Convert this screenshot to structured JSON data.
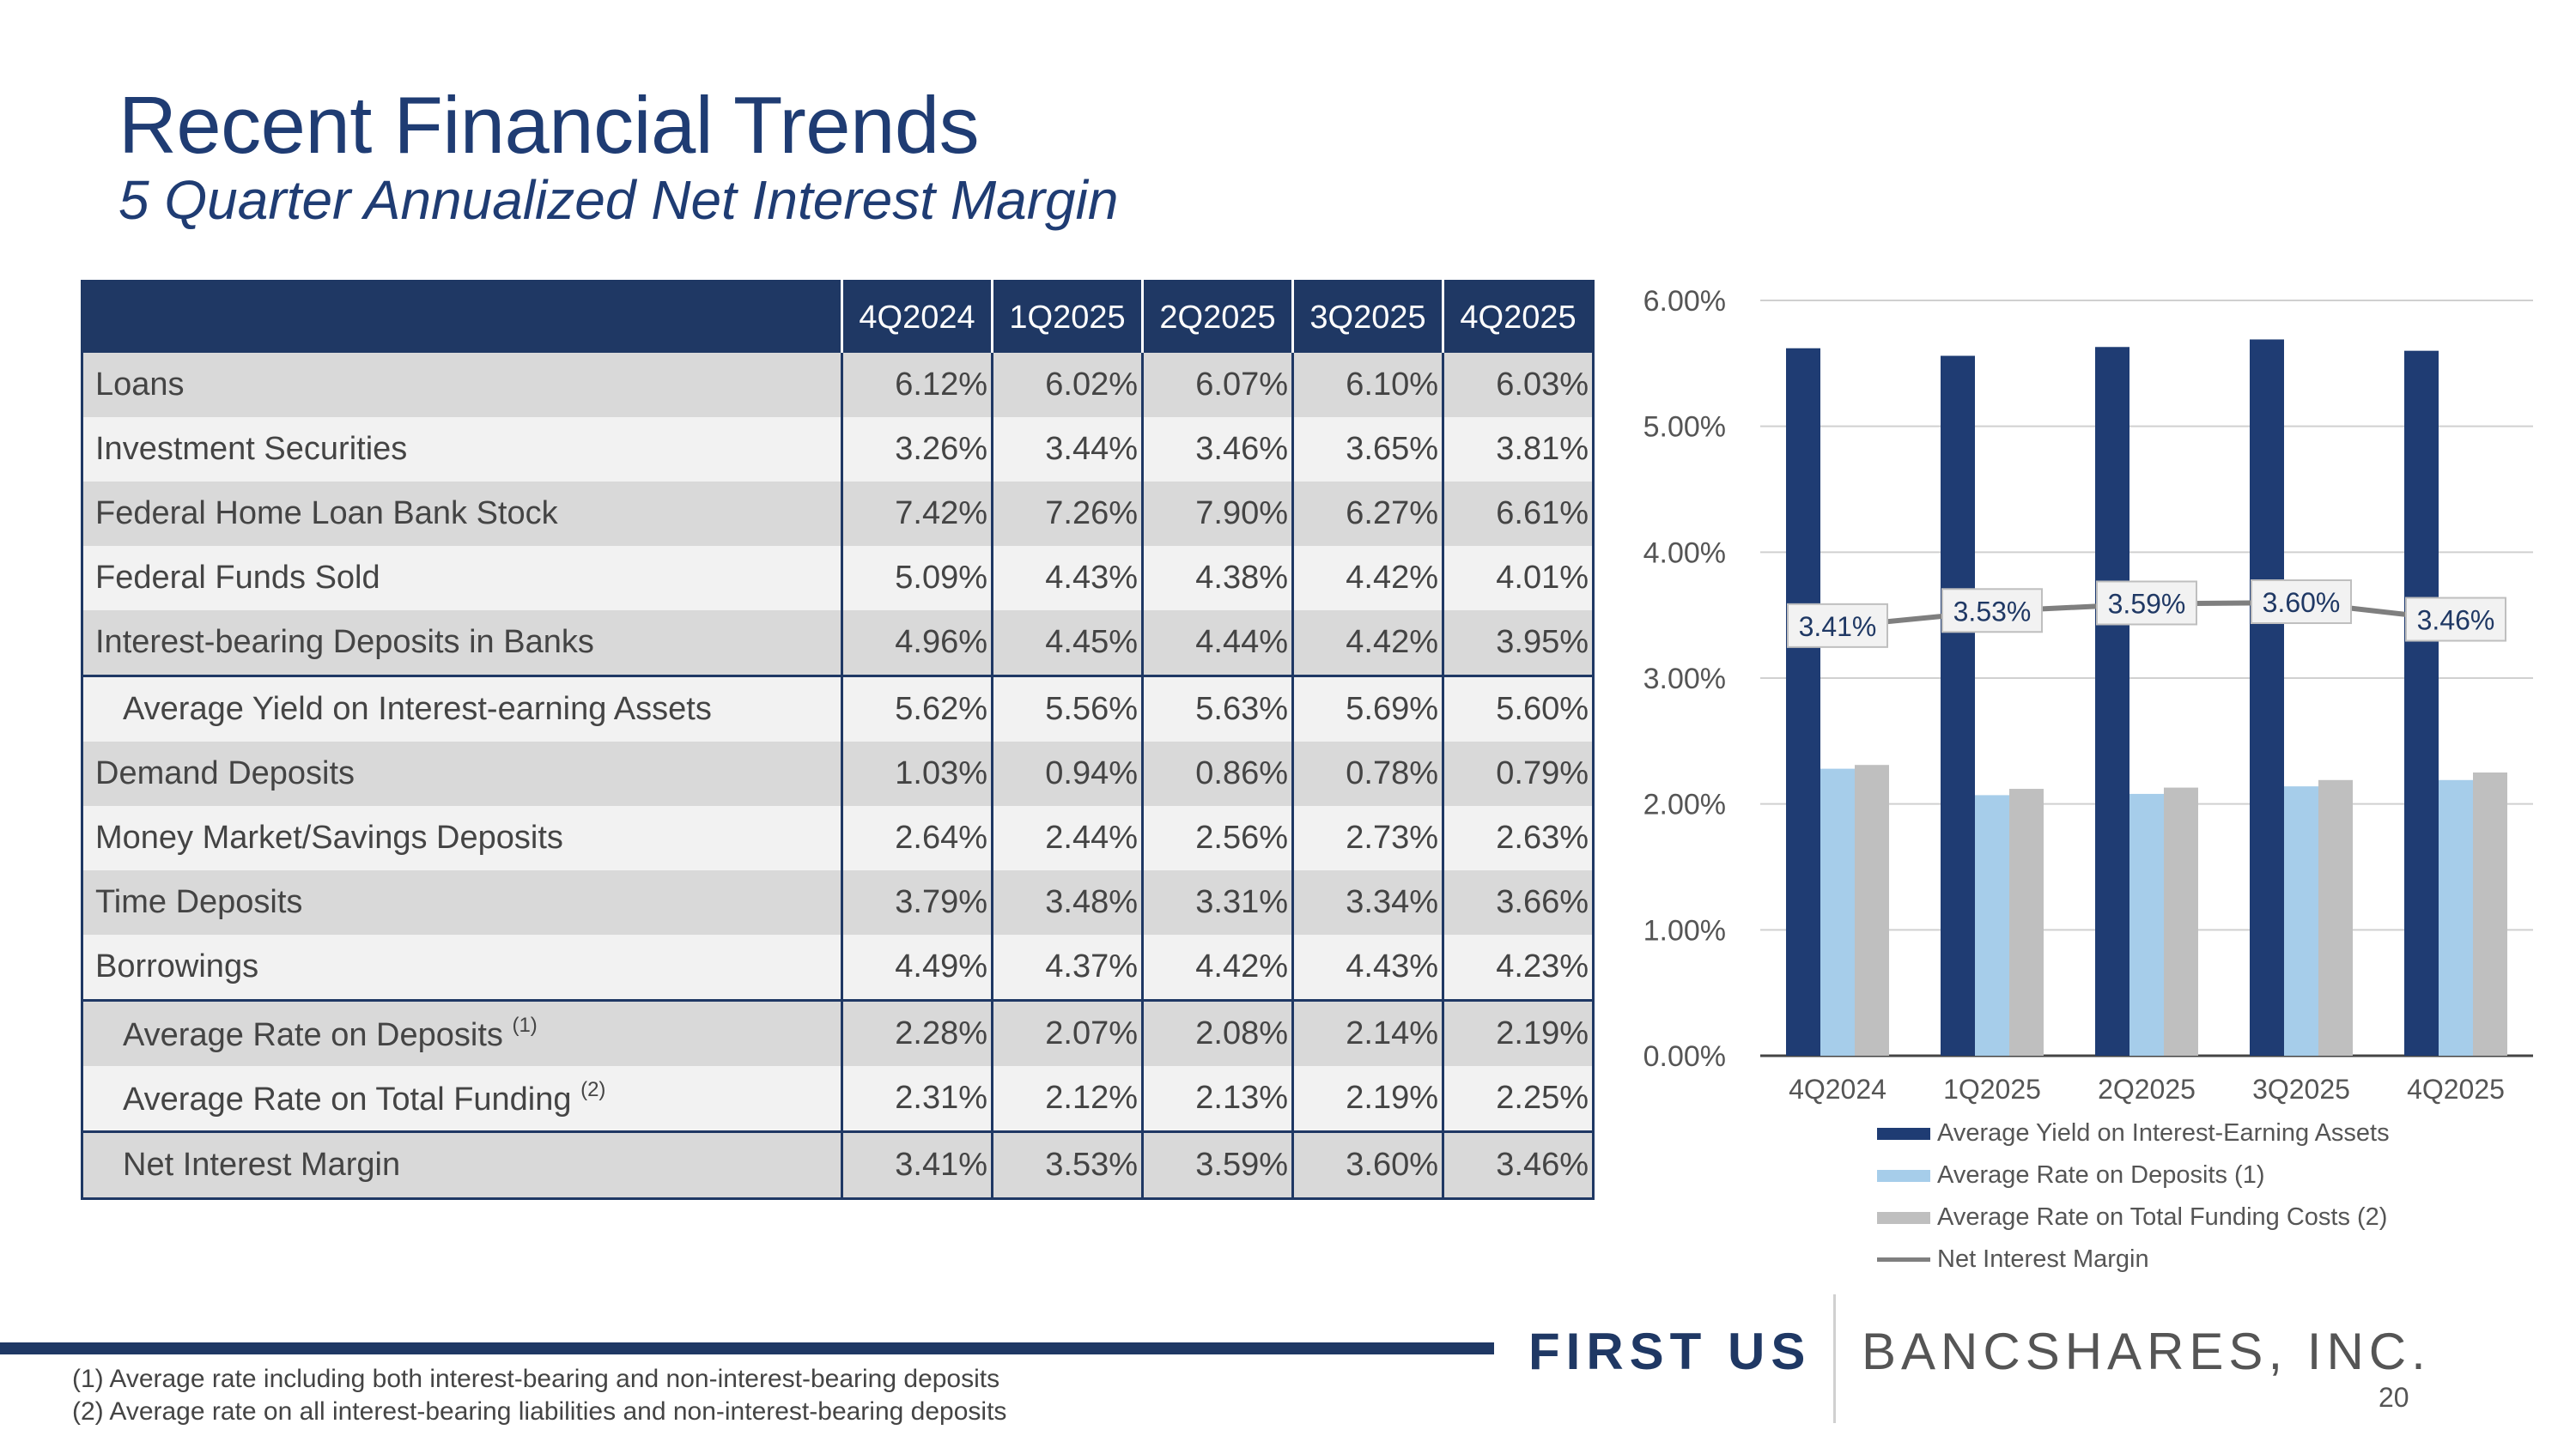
{
  "title": "Recent Financial Trends",
  "subtitle": "5 Quarter Annualized Net Interest Margin",
  "table": {
    "columns": [
      "4Q2024",
      "1Q2025",
      "2Q2025",
      "3Q2025",
      "4Q2025"
    ],
    "rows": [
      {
        "label": "Loans",
        "values": [
          "6.12%",
          "6.02%",
          "6.07%",
          "6.10%",
          "6.03%"
        ]
      },
      {
        "label": "Investment Securities",
        "values": [
          "3.26%",
          "3.44%",
          "3.46%",
          "3.65%",
          "3.81%"
        ]
      },
      {
        "label": "Federal Home Loan Bank Stock",
        "values": [
          "7.42%",
          "7.26%",
          "7.90%",
          "6.27%",
          "6.61%"
        ]
      },
      {
        "label": "Federal Funds Sold",
        "values": [
          "5.09%",
          "4.43%",
          "4.38%",
          "4.42%",
          "4.01%"
        ]
      },
      {
        "label": "Interest-bearing Deposits in Banks",
        "values": [
          "4.96%",
          "4.45%",
          "4.44%",
          "4.42%",
          "3.95%"
        ]
      },
      {
        "label": "Average Yield on Interest-earning Assets",
        "values": [
          "5.62%",
          "5.56%",
          "5.63%",
          "5.69%",
          "5.60%"
        ]
      },
      {
        "label": "Demand Deposits",
        "values": [
          "1.03%",
          "0.94%",
          "0.86%",
          "0.78%",
          "0.79%"
        ]
      },
      {
        "label": "Money Market/Savings Deposits",
        "values": [
          "2.64%",
          "2.44%",
          "2.56%",
          "2.73%",
          "2.63%"
        ]
      },
      {
        "label": "Time Deposits",
        "values": [
          "3.79%",
          "3.48%",
          "3.31%",
          "3.34%",
          "3.66%"
        ]
      },
      {
        "label": "Borrowings",
        "values": [
          "4.49%",
          "4.37%",
          "4.42%",
          "4.43%",
          "4.23%"
        ]
      },
      {
        "label": "Average Rate on Deposits",
        "sup": "(1)",
        "values": [
          "2.28%",
          "2.07%",
          "2.08%",
          "2.14%",
          "2.19%"
        ]
      },
      {
        "label": "Average Rate on Total Funding",
        "sup": "(2)",
        "values": [
          "2.31%",
          "2.12%",
          "2.13%",
          "2.19%",
          "2.25%"
        ]
      },
      {
        "label": "Net Interest Margin",
        "values": [
          "3.41%",
          "3.53%",
          "3.59%",
          "3.60%",
          "3.46%"
        ]
      }
    ]
  },
  "chart_data": {
    "type": "bar",
    "categories": [
      "4Q2024",
      "1Q2025",
      "2Q2025",
      "3Q2025",
      "4Q2025"
    ],
    "ylim": [
      0,
      6
    ],
    "y_ticks": [
      "0.00%",
      "1.00%",
      "2.00%",
      "3.00%",
      "4.00%",
      "5.00%",
      "6.00%"
    ],
    "grid": true,
    "legend_position": "bottom",
    "series": [
      {
        "name": "Average Yield on Interest-Earning Assets",
        "kind": "bar",
        "color": "#1f3c73",
        "values": [
          5.62,
          5.56,
          5.63,
          5.69,
          5.6
        ]
      },
      {
        "name": "Average Rate on Deposits (1)",
        "kind": "bar",
        "color": "#a6cdea",
        "values": [
          2.28,
          2.07,
          2.08,
          2.14,
          2.19
        ]
      },
      {
        "name": "Average Rate on Total Funding Costs (2)",
        "kind": "bar",
        "color": "#bfbfbf",
        "values": [
          2.31,
          2.12,
          2.13,
          2.19,
          2.25
        ]
      },
      {
        "name": "Net Interest Margin",
        "kind": "line",
        "color": "#7f7f7f",
        "values": [
          3.41,
          3.53,
          3.59,
          3.6,
          3.46
        ],
        "labels": [
          "3.41%",
          "3.53%",
          "3.59%",
          "3.60%",
          "3.46%"
        ]
      }
    ]
  },
  "footer": {
    "logo_first": "FIRST US",
    "logo_rest": "BANCSHARES, INC.",
    "page_number": "20",
    "footnotes": [
      "(1)  Average rate including both interest-bearing and non-interest-bearing deposits",
      "(2)  Average rate on all interest-bearing liabilities and non-interest-bearing deposits"
    ]
  },
  "colors": {
    "navy": "#1f3864",
    "light_blue": "#a6cdea",
    "gray": "#bfbfbf",
    "line": "#7f7f7f"
  }
}
